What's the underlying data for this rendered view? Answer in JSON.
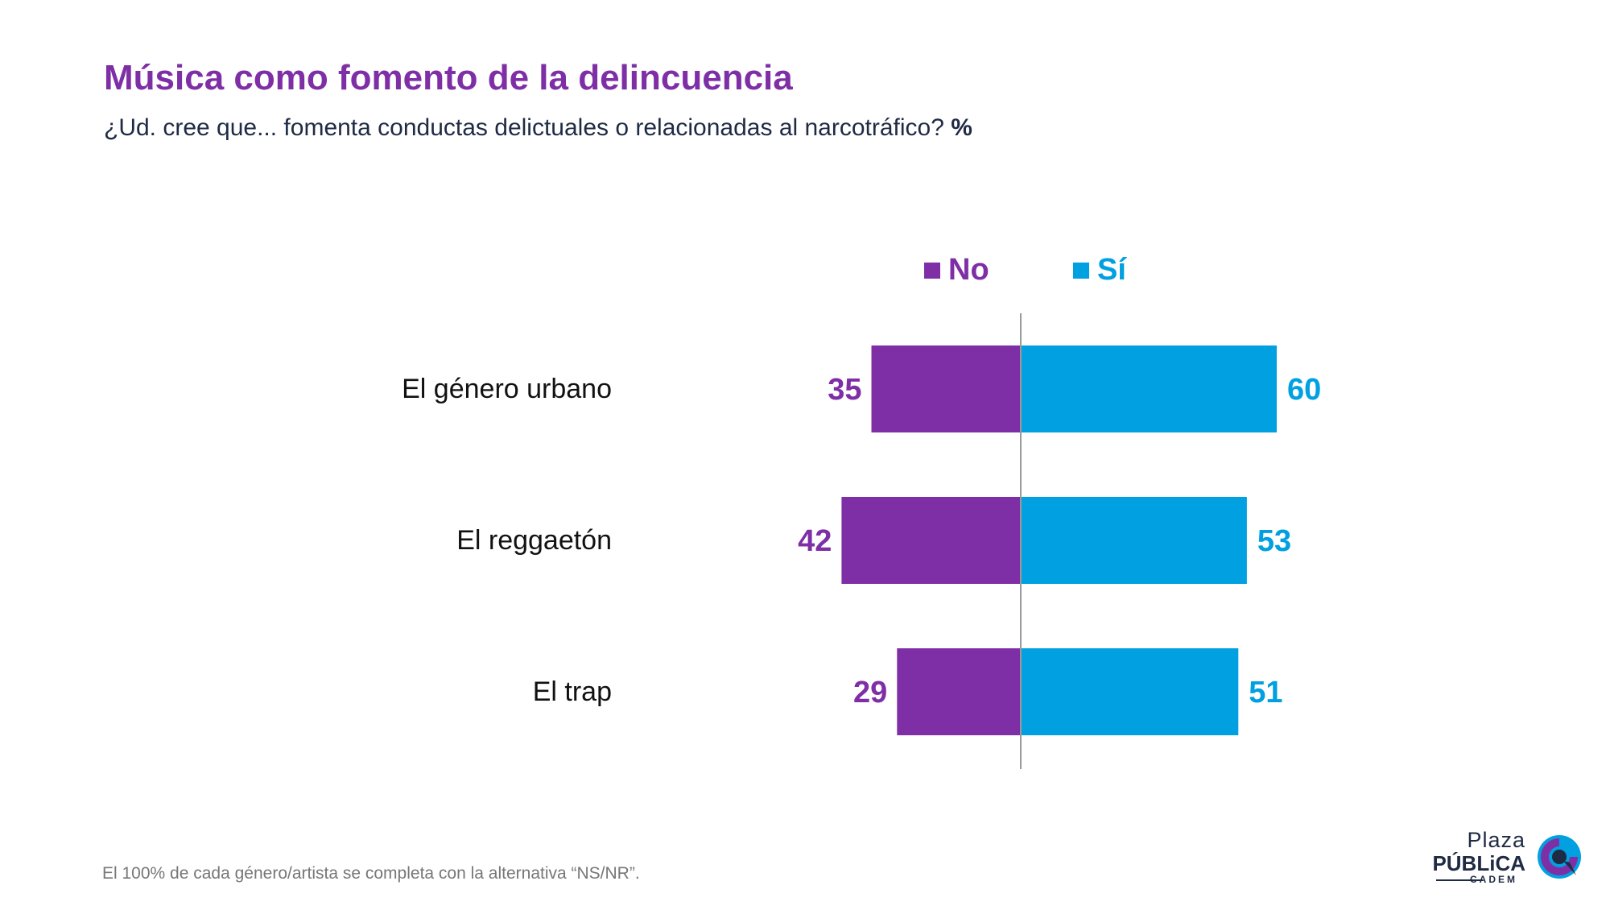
{
  "header": {
    "title": "Música como fomento de la delincuencia",
    "subtitle": "¿Ud. cree que... fomenta conductas delictuales o relacionadas al narcotráfico?",
    "subtitle_unit": "%"
  },
  "footnote": "El 100% de cada género/artista se completa con la alternativa “NS/NR”.",
  "logo": {
    "line1": "Plaza",
    "line2": "PÚBLiCA",
    "line3": "CADEM"
  },
  "colors": {
    "no": "#7f2fa6",
    "si": "#00a0e1",
    "title": "#7f2fa6",
    "text": "#1f2a44"
  },
  "chart_data": {
    "type": "bar",
    "orientation": "horizontal-diverging",
    "title": "Música como fomento de la delincuencia",
    "unit": "%",
    "categories": [
      "El género urbano",
      "El reggaetón",
      "El trap"
    ],
    "series": [
      {
        "name": "No",
        "values": [
          35,
          42,
          29
        ],
        "color": "#7f2fa6",
        "direction": "left"
      },
      {
        "name": "Sí",
        "values": [
          60,
          53,
          51
        ],
        "color": "#00a0e1",
        "direction": "right"
      }
    ],
    "legend_position": "top",
    "grid": false
  }
}
